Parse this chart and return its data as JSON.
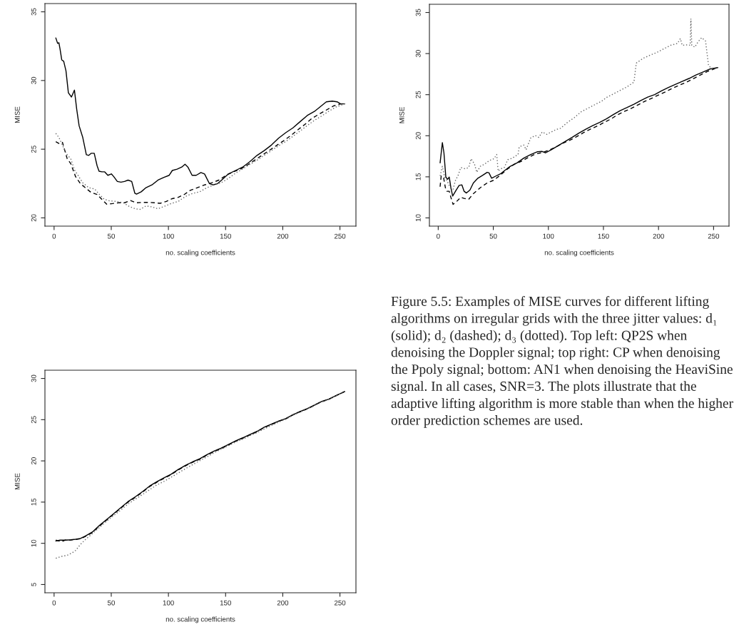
{
  "chart_data": [
    {
      "type": "line",
      "xlabel": "no. scaling coefficients",
      "ylabel": "MISE",
      "xlim": [
        -8,
        264
      ],
      "ylim": [
        19.4,
        35.6
      ],
      "xticks": [
        0,
        50,
        100,
        150,
        200,
        250
      ],
      "yticks": [
        20,
        25,
        30,
        35
      ],
      "series": [
        {
          "color": "#000000",
          "line_style": "solid",
          "x": [
            1.5,
            3.1,
            4.2,
            5.2,
            6.7,
            8.4,
            10.4,
            12.5,
            15.2,
            17.8,
            19.8,
            21.9,
            25.1,
            28.2,
            30.3,
            32.4,
            35.1,
            37.6,
            39.3,
            41.8,
            44.3,
            47,
            50.1,
            52.2,
            55.3,
            58.5,
            61.6,
            64.7,
            67.9,
            70.6,
            72.1,
            76.2,
            80.4,
            85.6,
            90.9,
            96.1,
            100.7,
            103.4,
            107.6,
            111.7,
            114.5,
            117,
            120.7,
            124.3,
            128.4,
            131.6,
            135.8,
            138.9,
            143.1,
            147.2,
            152.5,
            158.7,
            165,
            171.3,
            177.5,
            183.8,
            190.1,
            196.3,
            202.6,
            208.9,
            215.1,
            221.4,
            227.7,
            232.9,
            238.1,
            243.3,
            247.5,
            250.6,
            254.2
          ],
          "values": [
            33.1,
            32.7,
            32.75,
            32.3,
            31.5,
            31.4,
            30.7,
            29.1,
            28.8,
            29.3,
            27.9,
            26.7,
            25.85,
            24.6,
            24.55,
            24.7,
            24.7,
            23.8,
            23.4,
            23.35,
            23.35,
            23.1,
            23.2,
            23.0,
            22.65,
            22.6,
            22.65,
            22.75,
            22.65,
            21.8,
            21.73,
            21.9,
            22.2,
            22.4,
            22.75,
            22.95,
            23.1,
            23.45,
            23.55,
            23.7,
            23.9,
            23.7,
            23.1,
            23.1,
            23.3,
            23.2,
            22.5,
            22.4,
            22.5,
            22.8,
            23.2,
            23.45,
            23.7,
            24.1,
            24.55,
            24.9,
            25.3,
            25.8,
            26.2,
            26.55,
            27.0,
            27.45,
            27.75,
            28.1,
            28.45,
            28.5,
            28.45,
            28.3,
            28.3
          ]
        },
        {
          "color": "#000000",
          "line_style": "dashed",
          "x": [
            1.5,
            4.6,
            7.3,
            11.5,
            14.6,
            18.8,
            23,
            27.2,
            32.4,
            37.6,
            41.8,
            46,
            51.2,
            56.4,
            61.6,
            66.8,
            72,
            77.3,
            82.5,
            87.7,
            92.9,
            98.2,
            103.4,
            108.6,
            113.8,
            119,
            125.3,
            131.6,
            137.8,
            144.1,
            150.4,
            156.6,
            162.9,
            169.2,
            175.4,
            181.7,
            188,
            194.2,
            200.5,
            206.8,
            213,
            219.3,
            225.6,
            231.8,
            238.1,
            244.4,
            250.6,
            254.2
          ],
          "values": [
            25.55,
            25.4,
            25.5,
            24.3,
            23.95,
            23.0,
            22.5,
            22.2,
            21.85,
            21.7,
            21.35,
            21.0,
            21.04,
            21.1,
            21.1,
            21.26,
            21.1,
            21.13,
            21.13,
            21.1,
            21.06,
            21.2,
            21.4,
            21.5,
            21.7,
            22.0,
            22.2,
            22.4,
            22.55,
            22.75,
            23.1,
            23.35,
            23.55,
            23.85,
            24.2,
            24.55,
            24.9,
            25.25,
            25.6,
            25.98,
            26.4,
            26.8,
            27.25,
            27.55,
            27.85,
            28.15,
            28.3,
            28.3
          ]
        },
        {
          "color": "#666666",
          "line_style": "dotted",
          "x": [
            1.5,
            4.2,
            7.3,
            10.4,
            14.6,
            17.8,
            20.9,
            25.1,
            30.3,
            35.5,
            39.7,
            43.9,
            48,
            54.3,
            60.6,
            65.8,
            71,
            75.2,
            80.4,
            85.6,
            90.9,
            96.1,
            102.3,
            108.6,
            114.9,
            121.1,
            127.4,
            133.7,
            139.9,
            146.2,
            152.5,
            158.7,
            165,
            171.3,
            177.5,
            183.8,
            190.1,
            196.3,
            202.6,
            208.9,
            215.1,
            221.4,
            227.7,
            233.9,
            240.2,
            246.5,
            254.2
          ],
          "values": [
            26.15,
            25.85,
            25.3,
            24.7,
            24.3,
            23.5,
            23.1,
            22.55,
            22.2,
            22.1,
            21.7,
            21.35,
            21.25,
            21.2,
            21.1,
            20.83,
            20.66,
            20.62,
            20.87,
            20.8,
            20.66,
            20.83,
            21.04,
            21.2,
            21.56,
            21.78,
            21.9,
            22.2,
            22.4,
            22.56,
            22.88,
            23.25,
            23.57,
            23.9,
            24.2,
            24.55,
            24.9,
            25.25,
            25.56,
            25.94,
            26.32,
            26.72,
            27.1,
            27.41,
            27.76,
            28.07,
            28.3
          ]
        }
      ]
    },
    {
      "type": "line",
      "xlabel": "no. scaling coefficients",
      "ylabel": "MISE",
      "xlim": [
        -8,
        264
      ],
      "ylim": [
        9,
        36
      ],
      "xticks": [
        0,
        50,
        100,
        150,
        200,
        250
      ],
      "yticks": [
        10,
        15,
        20,
        25,
        30,
        35
      ],
      "series": [
        {
          "color": "#000000",
          "line_style": "solid",
          "x": [
            1.7,
            3.75,
            5.2,
            6.9,
            8.5,
            10,
            11.5,
            13.1,
            16.25,
            19,
            21.5,
            23.5,
            25.6,
            28.75,
            31.9,
            36,
            40.2,
            44.4,
            46,
            48.5,
            52.7,
            56.9,
            61,
            65.2,
            71.5,
            77.7,
            84,
            90.2,
            94.4,
            97.5,
            102.7,
            109,
            115.2,
            121.5,
            127.7,
            134,
            140.2,
            146.5,
            152.7,
            159,
            165.2,
            171.5,
            177.7,
            184,
            190.2,
            196.5,
            202.7,
            209,
            215.2,
            221.5,
            227.7,
            234,
            240.2,
            246.5,
            253.8
          ],
          "values": [
            16.7,
            19.16,
            17.9,
            14.97,
            14.7,
            14.97,
            13.67,
            12.66,
            13.38,
            13.96,
            14.02,
            13.24,
            13.03,
            13.38,
            14.25,
            14.83,
            15.17,
            15.55,
            15.5,
            14.83,
            15.12,
            15.4,
            15.84,
            16.27,
            16.7,
            17.28,
            17.72,
            18.06,
            18.09,
            17.92,
            18.3,
            18.8,
            19.3,
            19.8,
            20.32,
            20.8,
            21.24,
            21.62,
            22.05,
            22.57,
            23.06,
            23.44,
            23.84,
            24.3,
            24.7,
            25.0,
            25.46,
            25.87,
            26.24,
            26.62,
            26.97,
            27.4,
            27.75,
            28.12,
            28.3
          ]
        },
        {
          "color": "#000000",
          "line_style": "dashed",
          "x": [
            1.7,
            2.7,
            4.8,
            6.5,
            7.9,
            10,
            11.5,
            13.5,
            16.25,
            20.4,
            23.5,
            27.7,
            31.9,
            38.1,
            44.4,
            50.6,
            56.9,
            63.1,
            69.4,
            75.6,
            81.9,
            88.1,
            94.4,
            100.6,
            106.9,
            113.1,
            119.4,
            125.6,
            131.9,
            138.1,
            144.4,
            150.6,
            156.9,
            163.1,
            169.4,
            175.6,
            181.9,
            188.1,
            194.4,
            200.6,
            206.9,
            213.1,
            219.4,
            225.6,
            231.9,
            238.1,
            244.4,
            253.8
          ],
          "values": [
            13.8,
            15.1,
            14.97,
            13.67,
            13.24,
            13.24,
            12.5,
            11.65,
            11.94,
            12.5,
            12.37,
            12.28,
            12.95,
            13.67,
            14.25,
            14.6,
            15.26,
            15.98,
            16.56,
            16.9,
            17.37,
            17.77,
            17.95,
            18.24,
            18.64,
            19.08,
            19.45,
            19.88,
            20.38,
            20.8,
            21.18,
            21.62,
            22.05,
            22.57,
            22.98,
            23.35,
            23.79,
            24.22,
            24.6,
            25.0,
            25.38,
            25.8,
            26.18,
            26.53,
            26.97,
            27.4,
            27.83,
            28.3
          ]
        },
        {
          "color": "#666666",
          "line_style": "dotted",
          "x": [
            1.7,
            3.75,
            5.8,
            7.9,
            11,
            13.5,
            15.6,
            18.3,
            20.4,
            24.6,
            27.7,
            29.8,
            32.9,
            35,
            38.1,
            42.3,
            46.5,
            50.6,
            53.1,
            54.4,
            56.9,
            60,
            63.1,
            67.3,
            72.5,
            73.5,
            77.7,
            79.8,
            84,
            88.1,
            91.3,
            94.4,
            98.5,
            102.7,
            106.9,
            111,
            117.3,
            123.5,
            129.8,
            136,
            142.3,
            148.5,
            152.7,
            159,
            165.2,
            171.5,
            177.7,
            179.8,
            186,
            192.3,
            198.5,
            204.8,
            211,
            217.3,
            219.8,
            221.5,
            226.7,
            228.75,
            229.4,
            230.2,
            232.9,
            236,
            239.2,
            242.7,
            245.4,
            248.5,
            253.8
          ],
          "values": [
            15.1,
            16.27,
            14.97,
            14.54,
            13.67,
            13.5,
            14.54,
            15.26,
            16.13,
            15.98,
            16.13,
            17.2,
            16.56,
            15.55,
            16.27,
            16.56,
            17.0,
            17.2,
            17.72,
            15.7,
            15.98,
            16.13,
            17.08,
            17.28,
            17.72,
            18.64,
            18.87,
            18.3,
            19.74,
            20.03,
            19.8,
            20.46,
            20.17,
            20.46,
            20.75,
            20.9,
            21.62,
            22.2,
            22.92,
            23.35,
            23.79,
            24.22,
            24.65,
            25.09,
            25.52,
            25.96,
            26.53,
            28.84,
            29.42,
            29.8,
            30.14,
            30.58,
            31.01,
            31.24,
            31.82,
            31.01,
            31.07,
            31.01,
            34.25,
            31.01,
            30.78,
            31.45,
            31.94,
            31.53,
            28.55,
            28.12,
            28.3
          ]
        }
      ]
    },
    {
      "type": "line",
      "xlabel": "no. scaling coefficients",
      "ylabel": "MISE",
      "xlim": [
        -8,
        264
      ],
      "ylim": [
        4,
        31
      ],
      "xticks": [
        0,
        50,
        100,
        150,
        200,
        250
      ],
      "yticks": [
        5,
        10,
        15,
        20,
        25,
        30
      ],
      "annotations": [
        "Figure 5.5: Examples of MISE curves for different lifting algorithms on irregular grids with the three jitter values: d₁ (solid); d₂ (dashed); d₃ (dotted). Top left: QP2S when denoising the Doppler signal; top right: CP when denoising the Ppoly signal; bottom: AN1 when denoising the HeaviSine signal. In all cases, SNR=3. The plots illustrate that the adaptive lifting algorithm is more stable than when the higher order prediction schemes are used."
      ],
      "series": [
        {
          "color": "#000000",
          "line_style": "solid",
          "x": [
            1.5,
            5.2,
            9.4,
            14.6,
            18.8,
            23,
            27.2,
            33.4,
            39.7,
            46,
            52.2,
            58.5,
            64.7,
            71,
            77.3,
            83.5,
            89.8,
            96.1,
            102.3,
            108.6,
            114.9,
            121.1,
            127.4,
            133.7,
            139.9,
            146.2,
            152.5,
            158.7,
            165,
            171.3,
            177.5,
            183.8,
            190.1,
            196.3,
            202.6,
            208.9,
            215.1,
            221.4,
            227.7,
            233.9,
            240.2,
            246.5,
            254.2
          ],
          "values": [
            10.29,
            10.38,
            10.38,
            10.43,
            10.49,
            10.58,
            10.87,
            11.36,
            12.17,
            12.89,
            13.61,
            14.34,
            15.06,
            15.64,
            16.27,
            16.94,
            17.46,
            17.95,
            18.38,
            18.96,
            19.45,
            19.88,
            20.26,
            20.75,
            21.18,
            21.56,
            21.99,
            22.43,
            22.8,
            23.21,
            23.58,
            24.08,
            24.45,
            24.83,
            25.12,
            25.61,
            25.98,
            26.33,
            26.76,
            27.2,
            27.49,
            27.92,
            28.41
          ]
        },
        {
          "color": "#000000",
          "line_style": "dashed",
          "x": [
            1.5,
            6.7,
            9.4,
            14.6,
            18.8,
            23,
            27.2,
            33.4,
            39.7,
            46,
            52.2,
            58.5,
            64.7,
            71,
            77.3,
            83.5,
            89.8,
            96.1,
            102.3,
            108.6,
            114.9,
            121.1,
            127.4,
            133.7,
            139.9,
            146.2,
            152.5,
            158.7,
            165,
            171.3,
            177.5,
            183.8,
            190.1,
            196.3,
            202.6,
            208.9,
            215.1,
            221.4,
            227.7,
            233.9,
            240.2,
            246.5,
            254.2
          ],
          "values": [
            10.38,
            10.2,
            10.38,
            10.4,
            10.47,
            10.55,
            10.82,
            11.3,
            12.1,
            12.82,
            13.55,
            14.27,
            15.0,
            15.58,
            16.2,
            16.87,
            17.4,
            17.88,
            18.32,
            18.9,
            19.4,
            19.83,
            20.2,
            20.7,
            21.12,
            21.5,
            21.93,
            22.38,
            22.75,
            23.16,
            23.54,
            24.04,
            24.42,
            24.8,
            25.1,
            25.58,
            25.96,
            26.31,
            26.74,
            27.18,
            27.47,
            27.9,
            28.41
          ]
        },
        {
          "color": "#666666",
          "line_style": "dotted",
          "x": [
            1.5,
            6.3,
            11.5,
            15.7,
            18.8,
            23,
            27.2,
            33.4,
            39.7,
            46,
            52.2,
            58.5,
            64.7,
            71,
            77.3,
            83.5,
            89.8,
            96.1,
            102.3,
            108.6,
            114.9,
            121.1,
            127.4,
            133.7,
            139.9,
            146.2,
            152.5,
            158.7,
            165,
            171.3,
            177.5,
            183.8,
            190.1,
            196.3,
            202.6,
            208.9,
            215.1,
            221.4,
            227.7,
            233.9,
            240.2,
            246.5,
            254.2
          ],
          "values": [
            8.18,
            8.41,
            8.55,
            8.84,
            9.13,
            9.86,
            10.43,
            11.16,
            11.94,
            12.69,
            13.38,
            14.05,
            14.77,
            15.35,
            15.92,
            16.5,
            17.08,
            17.51,
            18.01,
            18.53,
            19.05,
            19.54,
            20.03,
            20.49,
            20.98,
            21.42,
            21.85,
            22.28,
            22.63,
            23.06,
            23.44,
            23.87,
            24.3,
            24.7,
            25.05,
            25.55,
            25.93,
            26.28,
            26.72,
            27.15,
            27.45,
            27.88,
            28.41
          ]
        }
      ]
    }
  ]
}
